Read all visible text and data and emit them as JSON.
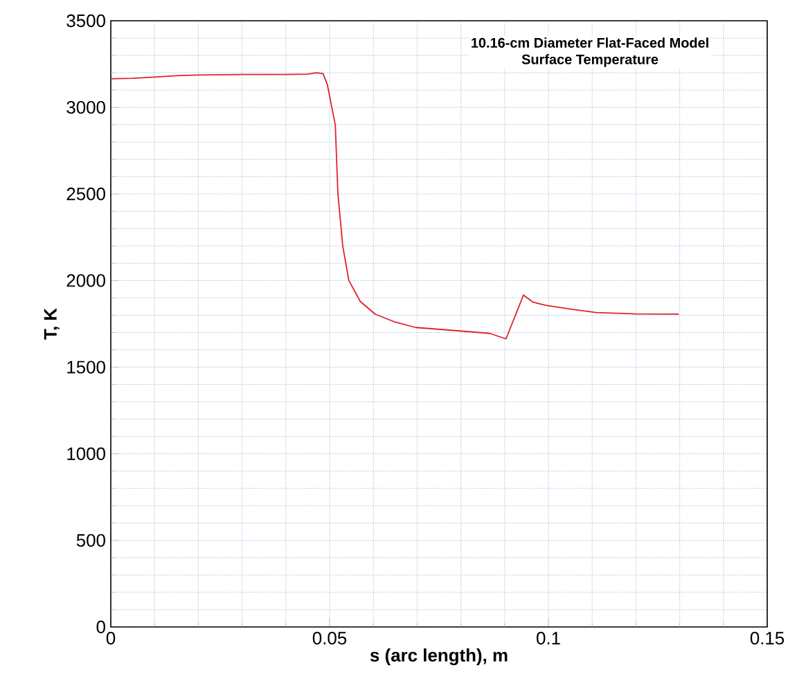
{
  "chart_data": {
    "type": "line",
    "title": "10.16-cm Diameter Flat-Faced Model",
    "subtitle": "Surface Temperature",
    "xlabel": "s (arc length), m",
    "ylabel": "T, K",
    "x": [
      0,
      0.005,
      0.01,
      0.015,
      0.02,
      0.03,
      0.04,
      0.045,
      0.047,
      0.0485,
      0.0495,
      0.0505,
      0.0513,
      0.0519,
      0.053,
      0.0544,
      0.057,
      0.0604,
      0.065,
      0.0697,
      0.0803,
      0.0866,
      0.0903,
      0.0943,
      0.0965,
      0.0993,
      0.105,
      0.1109,
      0.12,
      0.1298
    ],
    "series": [
      {
        "color": "#e0202a",
        "values": [
          3165,
          3168,
          3175,
          3183,
          3187,
          3190,
          3190,
          3192,
          3200,
          3195,
          3130,
          3000,
          2900,
          2500,
          2200,
          2000,
          1880,
          1806,
          1760,
          1729,
          1708,
          1695,
          1663,
          1916,
          1875,
          1857,
          1835,
          1815,
          1807,
          1806
        ]
      }
    ],
    "xlim": [
      0,
      0.15
    ],
    "ylim": [
      0,
      3500
    ],
    "xticks": [
      0,
      {
        "value": 0.01,
        "label": null
      },
      {
        "value": 0.02,
        "label": null
      },
      {
        "value": 0.03,
        "label": null
      },
      {
        "value": 0.04,
        "label": null
      },
      0.05,
      {
        "value": 0.06,
        "label": null
      },
      {
        "value": 0.07,
        "label": null
      },
      {
        "value": 0.08,
        "label": null
      },
      {
        "value": 0.09,
        "label": null
      },
      0.1,
      {
        "value": 0.11,
        "label": null
      },
      {
        "value": 0.12,
        "label": null
      },
      {
        "value": 0.13,
        "label": null
      },
      {
        "value": 0.14,
        "label": null
      },
      0.15
    ],
    "yticks": [
      0,
      {
        "value": 100,
        "label": null
      },
      {
        "value": 200,
        "label": null
      },
      {
        "value": 300,
        "label": null
      },
      {
        "value": 400,
        "label": null
      },
      500,
      {
        "value": 600,
        "label": null
      },
      {
        "value": 700,
        "label": null
      },
      {
        "value": 800,
        "label": null
      },
      {
        "value": 900,
        "label": null
      },
      1000,
      {
        "value": 1100,
        "label": null
      },
      {
        "value": 1200,
        "label": null
      },
      {
        "value": 1300,
        "label": null
      },
      {
        "value": 1400,
        "label": null
      },
      1500,
      {
        "value": 1600,
        "label": null
      },
      {
        "value": 1700,
        "label": null
      },
      {
        "value": 1800,
        "label": null
      },
      {
        "value": 1900,
        "label": null
      },
      2000,
      {
        "value": 2100,
        "label": null
      },
      {
        "value": 2200,
        "label": null
      },
      {
        "value": 2300,
        "label": null
      },
      {
        "value": 2400,
        "label": null
      },
      2500,
      {
        "value": 2600,
        "label": null
      },
      {
        "value": 2700,
        "label": null
      },
      {
        "value": 2800,
        "label": null
      },
      {
        "value": 2900,
        "label": null
      },
      3000,
      {
        "value": 3100,
        "label": null
      },
      {
        "value": 3200,
        "label": null
      },
      {
        "value": 3300,
        "label": null
      },
      {
        "value": 3400,
        "label": null
      },
      3500
    ],
    "grid": true,
    "marker": "none",
    "line_style": "solid"
  }
}
